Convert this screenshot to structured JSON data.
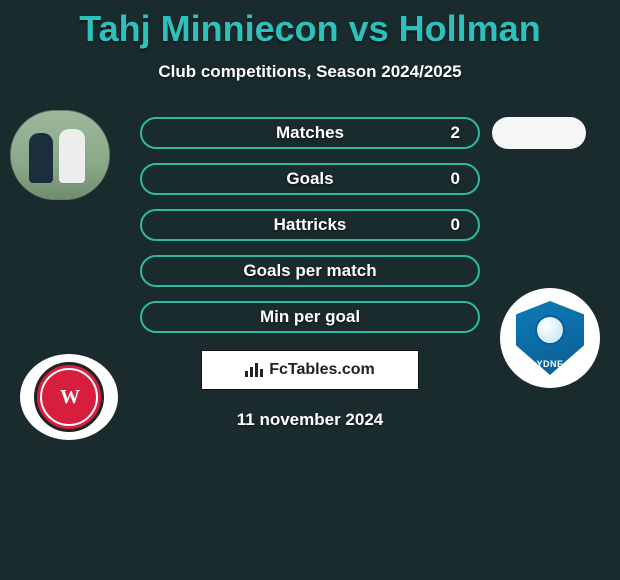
{
  "title": "Tahj Minniecon vs Hollman",
  "subtitle": "Club competitions, Season 2024/2025",
  "colors": {
    "title": "#2ec1bb",
    "background": "#1a2b2d",
    "stat_border": "#2fb9a2",
    "right_pill_bg": "#f6f6f6",
    "text": "#ffffff"
  },
  "stats": [
    {
      "label": "Matches",
      "left_value": "2",
      "show_right_pill": true
    },
    {
      "label": "Goals",
      "left_value": "0",
      "show_right_pill": false
    },
    {
      "label": "Hattricks",
      "left_value": "0",
      "show_right_pill": false
    },
    {
      "label": "Goals per match",
      "left_value": "",
      "show_right_pill": false
    },
    {
      "label": "Min per goal",
      "left_value": "",
      "show_right_pill": false
    }
  ],
  "left_player": {
    "photo_alt": "player-action-photo",
    "club_name": "Western Sydney Wanderers",
    "club_mono": "W"
  },
  "right_player": {
    "club_name": "Sydney FC",
    "club_text": "YDNE"
  },
  "branding": {
    "site": "FcTables.com"
  },
  "date": "11 november 2024",
  "style": {
    "title_fontsize": 36,
    "subtitle_fontsize": 17,
    "stat_label_fontsize": 17,
    "pill_width": 340,
    "pill_height": 32,
    "pill_radius": 16
  }
}
